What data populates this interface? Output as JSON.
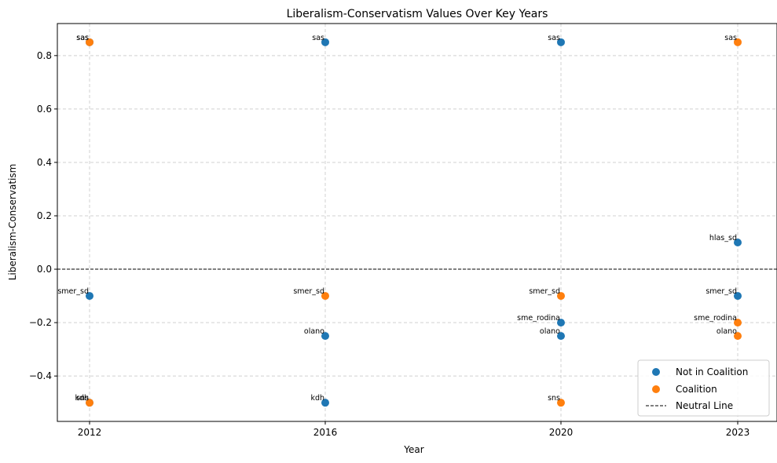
{
  "chart_data": {
    "type": "scatter",
    "title": "Liberalism-Conservatism Values Over Key Years",
    "xlabel": "Year",
    "ylabel": "Liberalism-Conservatism",
    "x_categories": [
      "2012",
      "2016",
      "2020",
      "2023"
    ],
    "ylim": [
      -0.57,
      0.92
    ],
    "y_ticks": [
      -0.4,
      -0.2,
      0.0,
      0.2,
      0.4,
      0.6,
      0.8
    ],
    "y_tick_labels": [
      "−0.4",
      "−0.2",
      "0.0",
      "0.2",
      "0.4",
      "0.6",
      "0.8"
    ],
    "grid": true,
    "legend_position": "bottom-right",
    "series": [
      {
        "name": "Not in Coalition",
        "color": "#1f77b4",
        "points": [
          {
            "x": "2012",
            "y": 0.85,
            "label": "sas"
          },
          {
            "x": "2012",
            "y": -0.1,
            "label": "smer_sd"
          },
          {
            "x": "2012",
            "y": -0.5,
            "label": "kdh"
          },
          {
            "x": "2016",
            "y": 0.85,
            "label": "sas"
          },
          {
            "x": "2016",
            "y": -0.25,
            "label": "olano"
          },
          {
            "x": "2016",
            "y": -0.5,
            "label": "kdh"
          },
          {
            "x": "2020",
            "y": 0.85,
            "label": "sas"
          },
          {
            "x": "2020",
            "y": -0.2,
            "label": "sme_rodina"
          },
          {
            "x": "2020",
            "y": -0.25,
            "label": "olano"
          },
          {
            "x": "2023",
            "y": 0.1,
            "label": "hlas_sd"
          },
          {
            "x": "2023",
            "y": -0.1,
            "label": "smer_sd"
          }
        ]
      },
      {
        "name": "Coalition",
        "color": "#ff7f0e",
        "points": [
          {
            "x": "2012",
            "y": 0.85,
            "label": "sas"
          },
          {
            "x": "2012",
            "y": -0.5,
            "label": "sns"
          },
          {
            "x": "2016",
            "y": -0.1,
            "label": "smer_sd"
          },
          {
            "x": "2020",
            "y": -0.1,
            "label": "smer_sd"
          },
          {
            "x": "2020",
            "y": -0.5,
            "label": "sns"
          },
          {
            "x": "2023",
            "y": 0.85,
            "label": "sas"
          },
          {
            "x": "2023",
            "y": -0.2,
            "label": "sme_rodina"
          },
          {
            "x": "2023",
            "y": -0.25,
            "label": "olano"
          }
        ]
      }
    ],
    "reference_line": {
      "name": "Neutral Line",
      "y": 0.0,
      "color": "#000000",
      "style": "dashed"
    }
  }
}
